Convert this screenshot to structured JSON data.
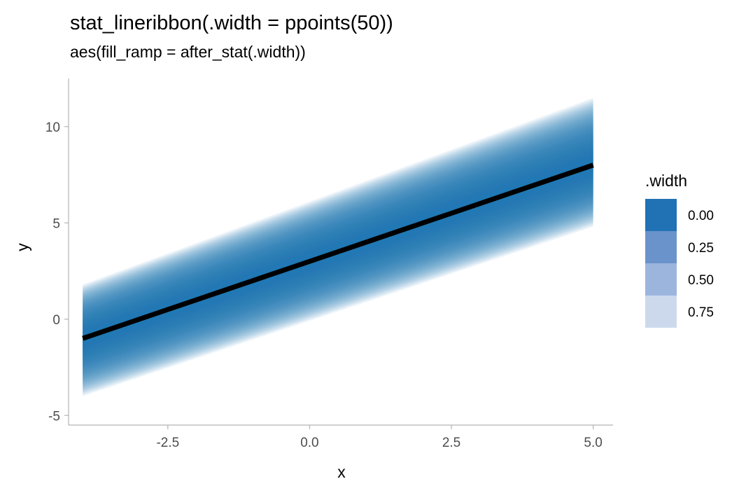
{
  "chart_data": {
    "type": "area",
    "title": "stat_lineribbon(.width = ppoints(50))",
    "subtitle": "aes(fill_ramp = after_stat(.width))",
    "xlabel": "x",
    "ylabel": "y",
    "xlim": [
      -4.25,
      5.35
    ],
    "ylim": [
      -5.5,
      12.5
    ],
    "x_ticks": [
      -2.5,
      0.0,
      2.5,
      5.0
    ],
    "x_tick_labels": [
      "-2.5",
      "0.0",
      "2.5",
      "5.0"
    ],
    "y_ticks": [
      -5,
      0,
      5,
      10
    ],
    "y_tick_labels": [
      "-5",
      "0",
      "5",
      "10"
    ],
    "grid": false,
    "legend_placement": "right",
    "line": {
      "x": [
        -4,
        5
      ],
      "y": [
        -1,
        8
      ],
      "color": "#000000"
    },
    "ribbon": {
      "x": [
        -4,
        5
      ],
      "center": [
        -1,
        8
      ],
      "outer_lower": [
        -4.0,
        4.8
      ],
      "outer_upper": [
        1.8,
        11.5
      ],
      "color": "#2171b5",
      "n_bands": 50
    },
    "legend": {
      "title": ".width",
      "entries": [
        {
          "label": "0.00",
          "color": "#2171b5"
        },
        {
          "label": "0.25",
          "color": "#6a93cb"
        },
        {
          "label": "0.50",
          "color": "#9cb5dd"
        },
        {
          "label": "0.75",
          "color": "#ccd9ed"
        }
      ]
    }
  }
}
